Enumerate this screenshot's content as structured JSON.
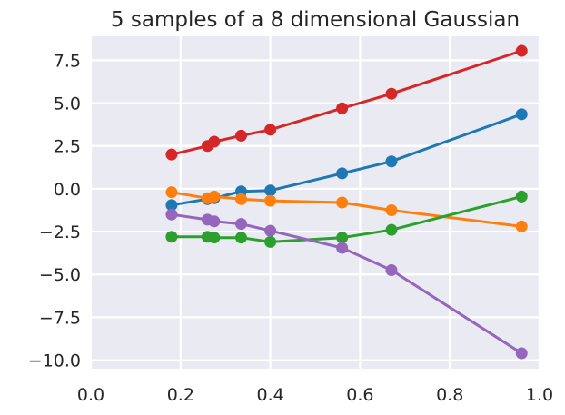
{
  "chart_data": {
    "type": "line",
    "title": "5 samples of a 8 dimensional Gaussian",
    "xlabel": "",
    "ylabel": "",
    "xlim": [
      0.0,
      1.0
    ],
    "ylim": [
      -10.5,
      8.9
    ],
    "grid": true,
    "legend": false,
    "x": [
      0.18,
      0.26,
      0.275,
      0.335,
      0.4,
      0.56,
      0.67,
      0.96
    ],
    "x_ticks": [
      0.0,
      0.2,
      0.4,
      0.6,
      0.8,
      1.0
    ],
    "x_tick_labels": [
      "0.0",
      "0.2",
      "0.4",
      "0.6",
      "0.8",
      "1.0"
    ],
    "y_ticks": [
      7.5,
      5.0,
      2.5,
      0.0,
      -2.5,
      -5.0,
      -7.5,
      -10.0
    ],
    "y_tick_labels": [
      "7.5",
      "5.0",
      "2.5",
      "0.0",
      "−2.5",
      "−5.0",
      "−7.5",
      "−10.0"
    ],
    "series": [
      {
        "color": "#1f77b4",
        "values": [
          -0.95,
          -0.6,
          -0.55,
          -0.15,
          -0.1,
          0.9,
          1.6,
          4.35
        ]
      },
      {
        "color": "#ff7f0e",
        "values": [
          -0.2,
          -0.55,
          -0.45,
          -0.6,
          -0.7,
          -0.8,
          -1.25,
          -2.2
        ]
      },
      {
        "color": "#2ca02c",
        "values": [
          -2.8,
          -2.8,
          -2.85,
          -2.85,
          -3.1,
          -2.85,
          -2.4,
          -0.45
        ]
      },
      {
        "color": "#d62728",
        "values": [
          2.0,
          2.5,
          2.75,
          3.1,
          3.45,
          4.7,
          5.55,
          8.05
        ]
      },
      {
        "color": "#9467bd",
        "values": [
          -1.5,
          -1.8,
          -1.9,
          -2.05,
          -2.45,
          -3.45,
          -4.75,
          -9.6
        ]
      }
    ]
  }
}
